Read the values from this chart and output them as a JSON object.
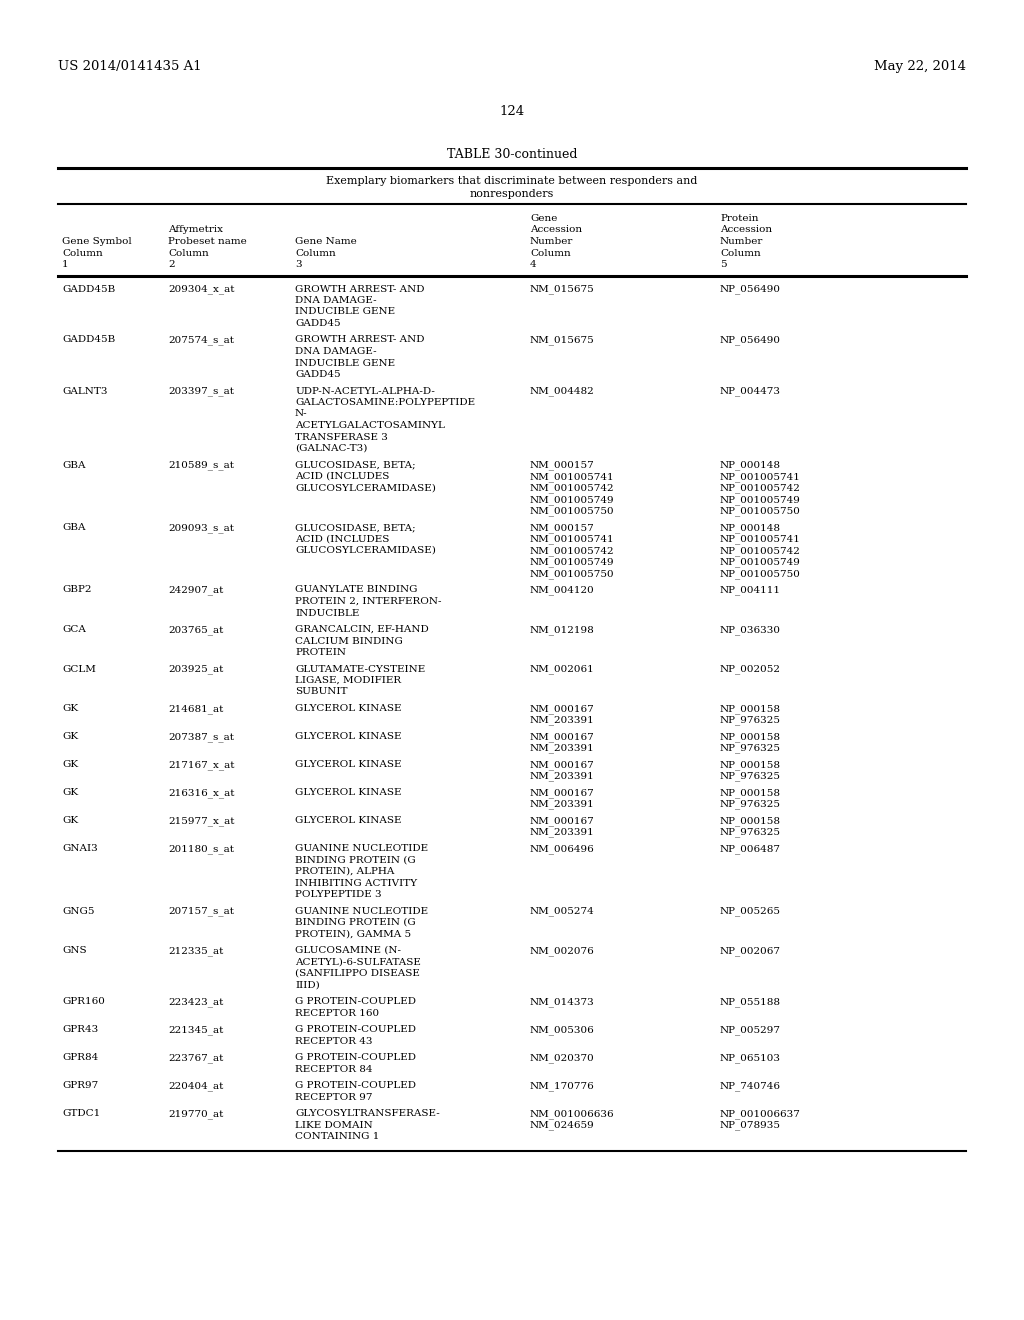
{
  "page_header_left": "US 2014/0141435 A1",
  "page_header_right": "May 22, 2014",
  "page_number": "124",
  "table_title": "TABLE 30-continued",
  "table_subtitle_line1": "Exemplary biomarkers that discriminate between responders and",
  "table_subtitle_line2": "nonresponders",
  "rows": [
    {
      "gene_symbol": "GADD45B",
      "probeset": "209304_x_at",
      "gene_name": [
        "GROWTH ARREST- AND",
        "DNA DAMAGE-",
        "INDUCIBLE GENE",
        "GADD45"
      ],
      "gene_acc": [
        "NM_015675"
      ],
      "prot_acc": [
        "NP_056490"
      ]
    },
    {
      "gene_symbol": "GADD45B",
      "probeset": "207574_s_at",
      "gene_name": [
        "GROWTH ARREST- AND",
        "DNA DAMAGE-",
        "INDUCIBLE GENE",
        "GADD45"
      ],
      "gene_acc": [
        "NM_015675"
      ],
      "prot_acc": [
        "NP_056490"
      ]
    },
    {
      "gene_symbol": "GALNT3",
      "probeset": "203397_s_at",
      "gene_name": [
        "UDP-N-ACETYL-ALPHA-D-",
        "GALACTOSAMINE:POLYPEPTIDE",
        "N-",
        "ACETYLGALACTOSAMINYL",
        "TRANSFERASE 3",
        "(GALNAC-T3)"
      ],
      "gene_acc": [
        "NM_004482"
      ],
      "prot_acc": [
        "NP_004473"
      ]
    },
    {
      "gene_symbol": "GBA",
      "probeset": "210589_s_at",
      "gene_name": [
        "GLUCOSIDASE, BETA;",
        "ACID (INCLUDES",
        "GLUCOSYLCERAMIDASE)"
      ],
      "gene_acc": [
        "NM_000157",
        "NM_001005741",
        "NM_001005742",
        "NM_001005749",
        "NM_001005750"
      ],
      "prot_acc": [
        "NP_000148",
        "NP_001005741",
        "NP_001005742",
        "NP_001005749",
        "NP_001005750"
      ]
    },
    {
      "gene_symbol": "GBA",
      "probeset": "209093_s_at",
      "gene_name": [
        "GLUCOSIDASE, BETA;",
        "ACID (INCLUDES",
        "GLUCOSYLCERAMIDASE)"
      ],
      "gene_acc": [
        "NM_000157",
        "NM_001005741",
        "NM_001005742",
        "NM_001005749",
        "NM_001005750"
      ],
      "prot_acc": [
        "NP_000148",
        "NP_001005741",
        "NP_001005742",
        "NP_001005749",
        "NP_001005750"
      ]
    },
    {
      "gene_symbol": "GBP2",
      "probeset": "242907_at",
      "gene_name": [
        "GUANYLATE BINDING",
        "PROTEIN 2, INTERFERON-",
        "INDUCIBLE"
      ],
      "gene_acc": [
        "NM_004120"
      ],
      "prot_acc": [
        "NP_004111"
      ]
    },
    {
      "gene_symbol": "GCA",
      "probeset": "203765_at",
      "gene_name": [
        "GRANCALCIN, EF-HAND",
        "CALCIUM BINDING",
        "PROTEIN"
      ],
      "gene_acc": [
        "NM_012198"
      ],
      "prot_acc": [
        "NP_036330"
      ]
    },
    {
      "gene_symbol": "GCLM",
      "probeset": "203925_at",
      "gene_name": [
        "GLUTAMATE-CYSTEINE",
        "LIGASE, MODIFIER",
        "SUBUNIT"
      ],
      "gene_acc": [
        "NM_002061"
      ],
      "prot_acc": [
        "NP_002052"
      ]
    },
    {
      "gene_symbol": "GK",
      "probeset": "214681_at",
      "gene_name": [
        "GLYCEROL KINASE"
      ],
      "gene_acc": [
        "NM_000167",
        "NM_203391"
      ],
      "prot_acc": [
        "NP_000158",
        "NP_976325"
      ]
    },
    {
      "gene_symbol": "GK",
      "probeset": "207387_s_at",
      "gene_name": [
        "GLYCEROL KINASE"
      ],
      "gene_acc": [
        "NM_000167",
        "NM_203391"
      ],
      "prot_acc": [
        "NP_000158",
        "NP_976325"
      ]
    },
    {
      "gene_symbol": "GK",
      "probeset": "217167_x_at",
      "gene_name": [
        "GLYCEROL KINASE"
      ],
      "gene_acc": [
        "NM_000167",
        "NM_203391"
      ],
      "prot_acc": [
        "NP_000158",
        "NP_976325"
      ]
    },
    {
      "gene_symbol": "GK",
      "probeset": "216316_x_at",
      "gene_name": [
        "GLYCEROL KINASE"
      ],
      "gene_acc": [
        "NM_000167",
        "NM_203391"
      ],
      "prot_acc": [
        "NP_000158",
        "NP_976325"
      ]
    },
    {
      "gene_symbol": "GK",
      "probeset": "215977_x_at",
      "gene_name": [
        "GLYCEROL KINASE"
      ],
      "gene_acc": [
        "NM_000167",
        "NM_203391"
      ],
      "prot_acc": [
        "NP_000158",
        "NP_976325"
      ]
    },
    {
      "gene_symbol": "GNAI3",
      "probeset": "201180_s_at",
      "gene_name": [
        "GUANINE NUCLEOTIDE",
        "BINDING PROTEIN (G",
        "PROTEIN), ALPHA",
        "INHIBITING ACTIVITY",
        "POLYPEPTIDE 3"
      ],
      "gene_acc": [
        "NM_006496"
      ],
      "prot_acc": [
        "NP_006487"
      ]
    },
    {
      "gene_symbol": "GNG5",
      "probeset": "207157_s_at",
      "gene_name": [
        "GUANINE NUCLEOTIDE",
        "BINDING PROTEIN (G",
        "PROTEIN), GAMMA 5"
      ],
      "gene_acc": [
        "NM_005274"
      ],
      "prot_acc": [
        "NP_005265"
      ]
    },
    {
      "gene_symbol": "GNS",
      "probeset": "212335_at",
      "gene_name": [
        "GLUCOSAMINE (N-",
        "ACETYL)-6-SULFATASE",
        "(SANFILIPPO DISEASE",
        "IIID)"
      ],
      "gene_acc": [
        "NM_002076"
      ],
      "prot_acc": [
        "NP_002067"
      ]
    },
    {
      "gene_symbol": "GPR160",
      "probeset": "223423_at",
      "gene_name": [
        "G PROTEIN-COUPLED",
        "RECEPTOR 160"
      ],
      "gene_acc": [
        "NM_014373"
      ],
      "prot_acc": [
        "NP_055188"
      ]
    },
    {
      "gene_symbol": "GPR43",
      "probeset": "221345_at",
      "gene_name": [
        "G PROTEIN-COUPLED",
        "RECEPTOR 43"
      ],
      "gene_acc": [
        "NM_005306"
      ],
      "prot_acc": [
        "NP_005297"
      ]
    },
    {
      "gene_symbol": "GPR84",
      "probeset": "223767_at",
      "gene_name": [
        "G PROTEIN-COUPLED",
        "RECEPTOR 84"
      ],
      "gene_acc": [
        "NM_020370"
      ],
      "prot_acc": [
        "NP_065103"
      ]
    },
    {
      "gene_symbol": "GPR97",
      "probeset": "220404_at",
      "gene_name": [
        "G PROTEIN-COUPLED",
        "RECEPTOR 97"
      ],
      "gene_acc": [
        "NM_170776"
      ],
      "prot_acc": [
        "NP_740746"
      ]
    },
    {
      "gene_symbol": "GTDC1",
      "probeset": "219770_at",
      "gene_name": [
        "GLYCOSYLTRANSFERASE-",
        "LIKE DOMAIN",
        "CONTAINING 1"
      ],
      "gene_acc": [
        "NM_001006636",
        "NM_024659"
      ],
      "prot_acc": [
        "NP_001006637",
        "NP_078935"
      ]
    }
  ],
  "background_color": "#ffffff",
  "text_color": "#000000"
}
